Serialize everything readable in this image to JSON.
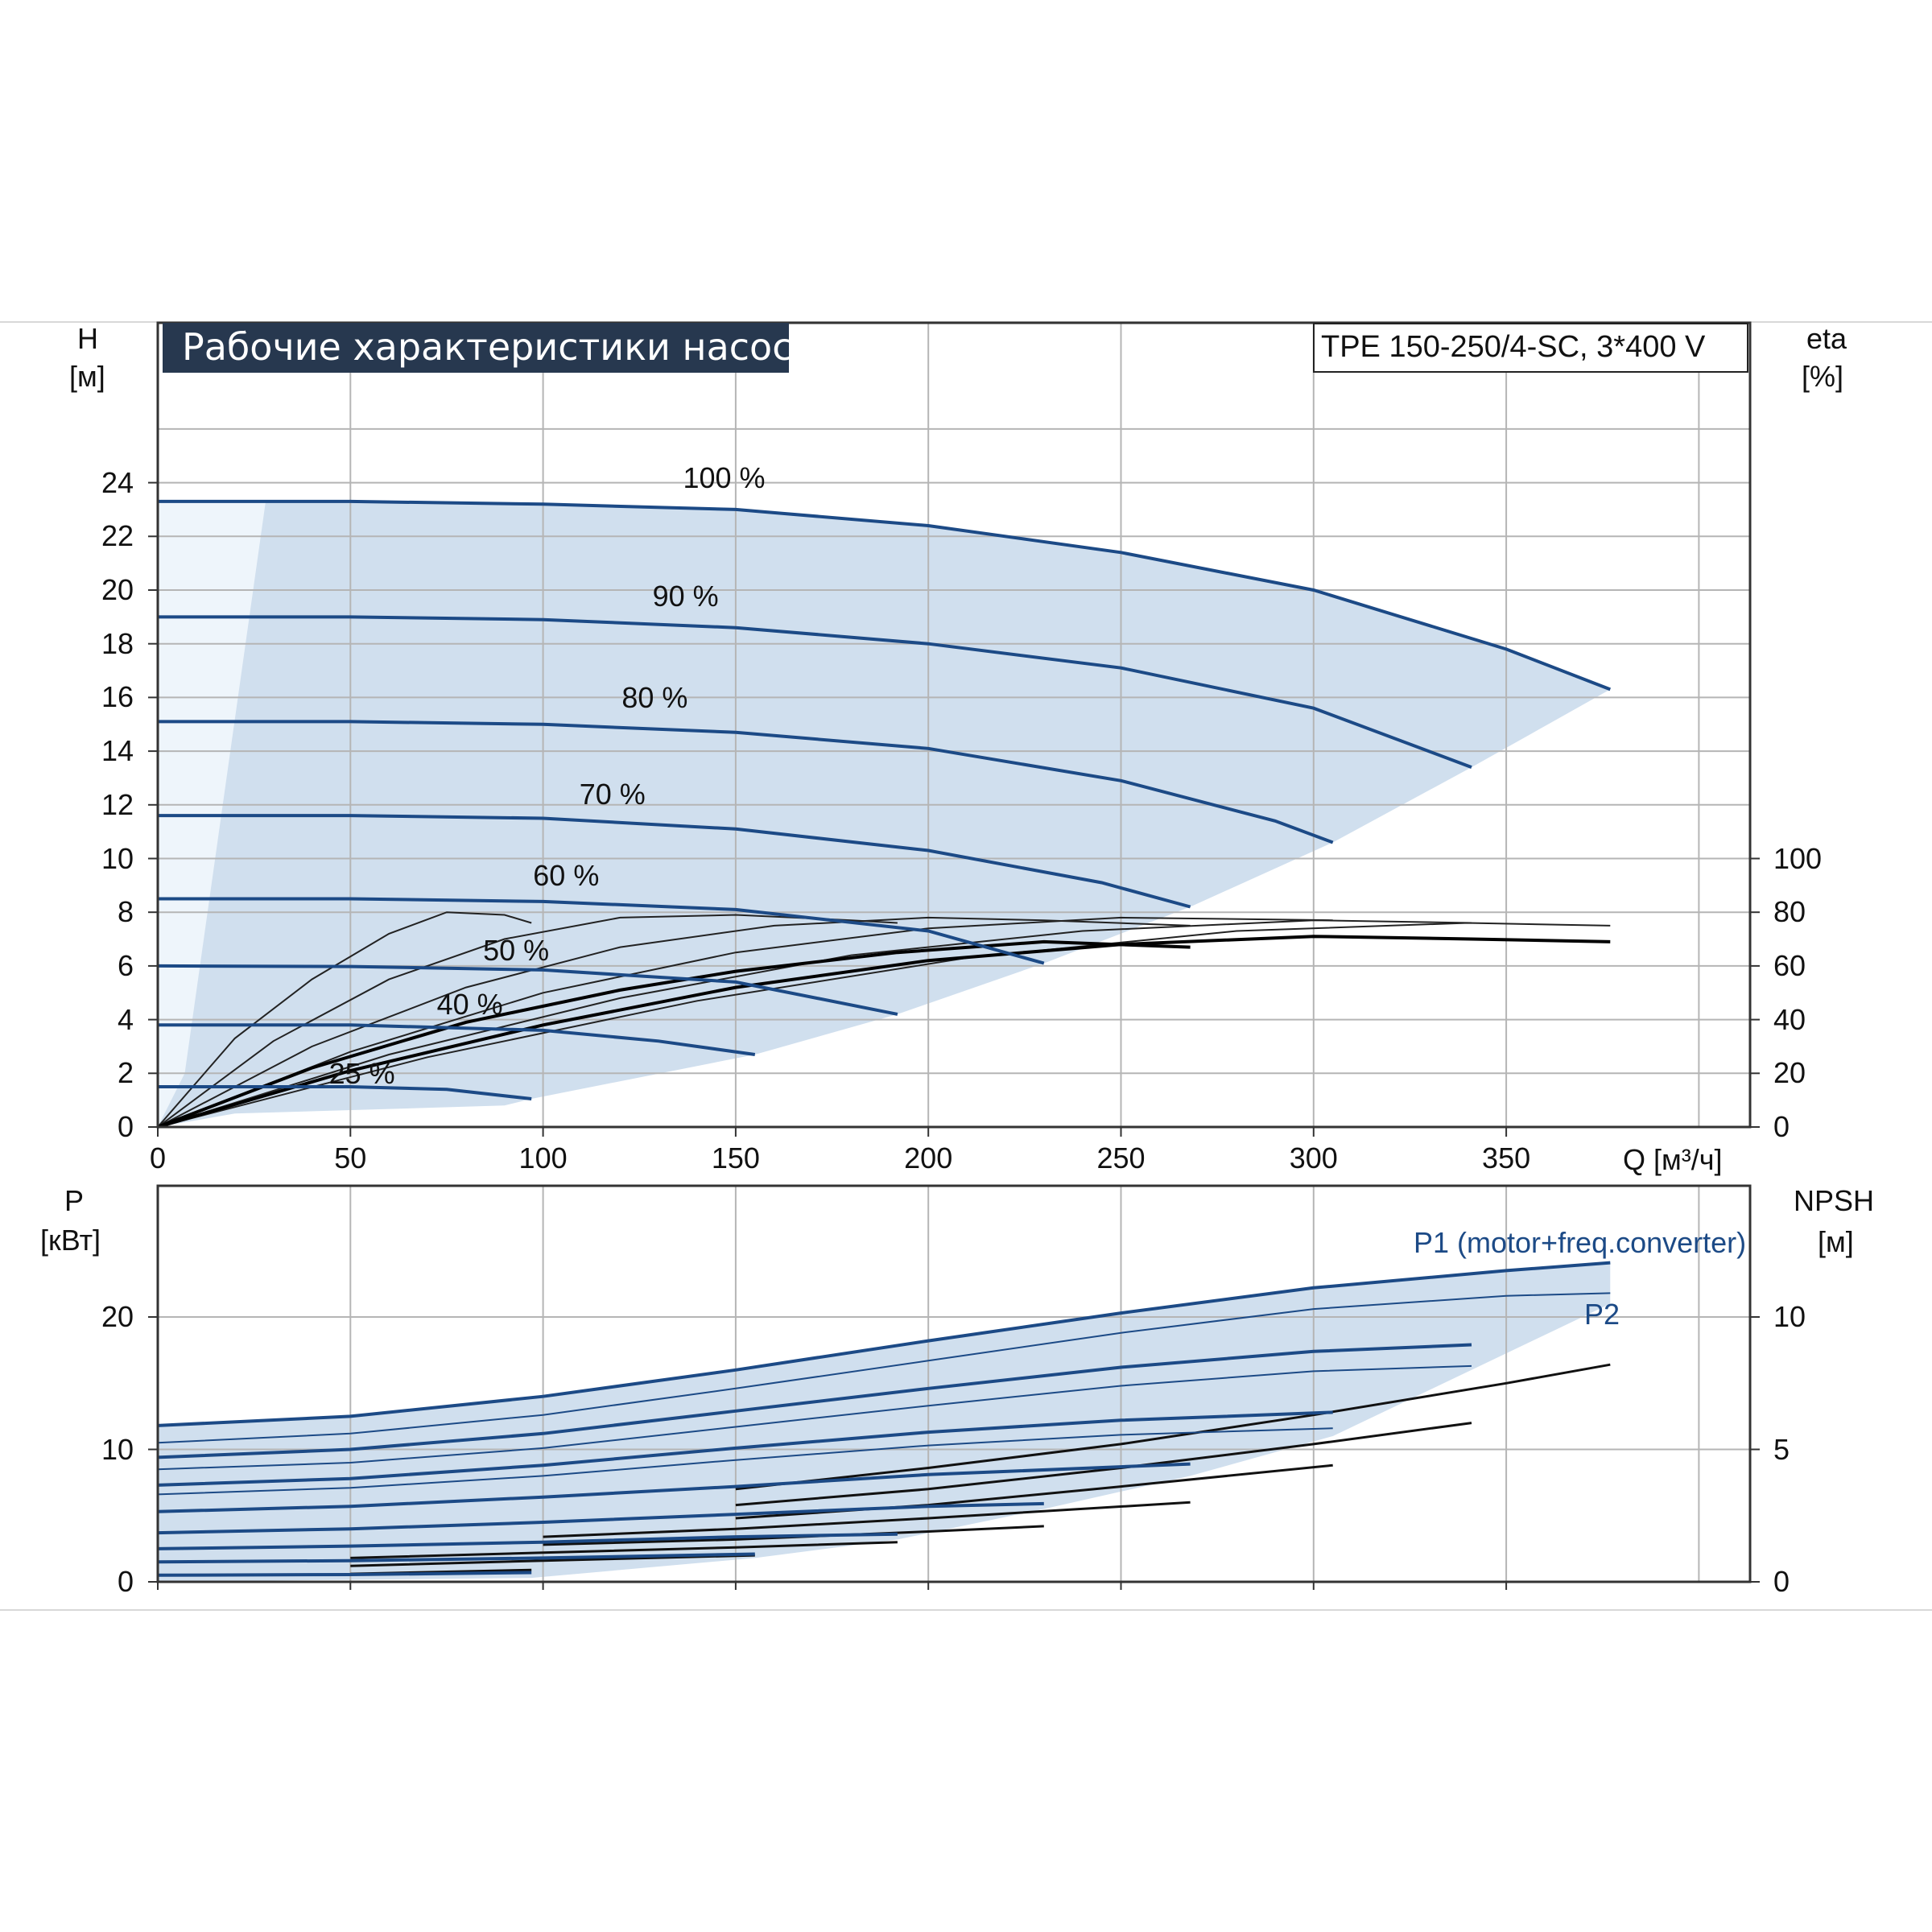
{
  "title": "Рабочие характеристики насоса",
  "model": "TPE 150-250/4-SC, 3*400 V",
  "axes": {
    "h_name": "H",
    "h_unit": "[м]",
    "eta_name": "eta",
    "eta_unit": "[%]",
    "q_label": "Q [м³/ч]",
    "p_name": "P",
    "p_unit": "[кВт]",
    "npsh_name": "NPSH",
    "npsh_unit": "[м]"
  },
  "labels": {
    "p1": "P1 (motor+freq.converter)",
    "p2": "P2"
  },
  "chart_data": [
    {
      "type": "line",
      "name": "head",
      "xlabel": "Q [м³/ч]",
      "ylabel": "H [м]",
      "xlim": [
        0,
        415
      ],
      "ylim": [
        0,
        28
      ],
      "x_ticks": [
        "0",
        "50",
        "100",
        "150",
        "200",
        "250",
        "300",
        "350"
      ],
      "y_ticks": [
        "0",
        "2",
        "4",
        "6",
        "8",
        "10",
        "12",
        "14",
        "16",
        "18",
        "20",
        "22",
        "24"
      ],
      "speed_labels": [
        {
          "text": "100 %",
          "x": 147,
          "y": 24.2
        },
        {
          "text": "90 %",
          "x": 137,
          "y": 19.8
        },
        {
          "text": "80 %",
          "x": 129,
          "y": 16.0
        },
        {
          "text": "70 %",
          "x": 118,
          "y": 12.4
        },
        {
          "text": "60 %",
          "x": 106,
          "y": 9.4
        },
        {
          "text": "50 %",
          "x": 93,
          "y": 6.6
        },
        {
          "text": "40 %",
          "x": 81,
          "y": 4.6
        },
        {
          "text": "25 %",
          "x": 53,
          "y": 2.0
        }
      ],
      "series": [
        {
          "speed": 100,
          "points": [
            [
              0,
              23.3
            ],
            [
              50,
              23.3
            ],
            [
              100,
              23.2
            ],
            [
              150,
              23.0
            ],
            [
              200,
              22.4
            ],
            [
              250,
              21.4
            ],
            [
              300,
              20.0
            ],
            [
              350,
              17.8
            ],
            [
              377,
              16.3
            ]
          ]
        },
        {
          "speed": 90,
          "points": [
            [
              0,
              19.0
            ],
            [
              50,
              19.0
            ],
            [
              100,
              18.9
            ],
            [
              150,
              18.6
            ],
            [
              200,
              18.0
            ],
            [
              250,
              17.1
            ],
            [
              300,
              15.6
            ],
            [
              341,
              13.4
            ]
          ]
        },
        {
          "speed": 80,
          "points": [
            [
              0,
              15.1
            ],
            [
              50,
              15.1
            ],
            [
              100,
              15.0
            ],
            [
              150,
              14.7
            ],
            [
              200,
              14.1
            ],
            [
              250,
              12.9
            ],
            [
              290,
              11.4
            ],
            [
              305,
              10.6
            ]
          ]
        },
        {
          "speed": 70,
          "points": [
            [
              0,
              11.6
            ],
            [
              50,
              11.6
            ],
            [
              100,
              11.5
            ],
            [
              150,
              11.1
            ],
            [
              200,
              10.3
            ],
            [
              245,
              9.1
            ],
            [
              268,
              8.2
            ]
          ]
        },
        {
          "speed": 60,
          "points": [
            [
              0,
              8.5
            ],
            [
              50,
              8.5
            ],
            [
              100,
              8.4
            ],
            [
              150,
              8.1
            ],
            [
              200,
              7.3
            ],
            [
              230,
              6.1
            ]
          ]
        },
        {
          "speed": 50,
          "points": [
            [
              0,
              6.0
            ],
            [
              50,
              5.98
            ],
            [
              100,
              5.85
            ],
            [
              150,
              5.4
            ],
            [
              192,
              4.2
            ]
          ]
        },
        {
          "speed": 40,
          "points": [
            [
              0,
              3.8
            ],
            [
              50,
              3.8
            ],
            [
              100,
              3.6
            ],
            [
              130,
              3.2
            ],
            [
              155,
              2.7
            ]
          ]
        },
        {
          "speed": 25,
          "points": [
            [
              0,
              1.5
            ],
            [
              50,
              1.5
            ],
            [
              75,
              1.4
            ],
            [
              97,
              1.05
            ]
          ]
        }
      ]
    },
    {
      "type": "line",
      "name": "efficiency",
      "ylabel": "eta [%]",
      "ylim": [
        0,
        100
      ],
      "y_ticks": [
        "0",
        "20",
        "40",
        "60",
        "80",
        "100"
      ],
      "series": [
        {
          "points": [
            [
              0,
              0
            ],
            [
              20,
              33
            ],
            [
              40,
              55
            ],
            [
              60,
              72
            ],
            [
              75,
              80
            ],
            [
              90,
              79
            ],
            [
              97,
              76
            ]
          ]
        },
        {
          "points": [
            [
              0,
              0
            ],
            [
              30,
              32
            ],
            [
              60,
              55
            ],
            [
              90,
              70
            ],
            [
              120,
              78
            ],
            [
              150,
              79
            ],
            [
              180,
              77
            ],
            [
              192,
              76
            ]
          ]
        },
        {
          "points": [
            [
              0,
              0
            ],
            [
              40,
              30
            ],
            [
              80,
              52
            ],
            [
              120,
              67
            ],
            [
              160,
              75
            ],
            [
              200,
              78
            ],
            [
              230,
              77
            ],
            [
              268,
              75
            ]
          ]
        },
        {
          "points": [
            [
              0,
              0
            ],
            [
              50,
              28
            ],
            [
              100,
              50
            ],
            [
              150,
              65
            ],
            [
              200,
              74
            ],
            [
              250,
              78
            ],
            [
              305,
              77
            ]
          ]
        },
        {
          "points": [
            [
              0,
              0
            ],
            [
              60,
              27
            ],
            [
              120,
              48
            ],
            [
              180,
              64
            ],
            [
              240,
              73
            ],
            [
              300,
              77
            ],
            [
              341,
              76
            ]
          ]
        },
        {
          "points": [
            [
              0,
              0
            ],
            [
              70,
              26
            ],
            [
              140,
              47
            ],
            [
              210,
              63
            ],
            [
              280,
              73
            ],
            [
              340,
              76
            ],
            [
              377,
              75
            ]
          ]
        },
        {
          "points": [
            [
              0,
              0
            ],
            [
              40,
              22
            ],
            [
              80,
              39
            ],
            [
              120,
              51
            ],
            [
              150,
              58
            ],
            [
              192,
              65
            ],
            [
              230,
              69
            ],
            [
              268,
              67
            ]
          ]
        },
        {
          "points": [
            [
              0,
              0
            ],
            [
              50,
              21
            ],
            [
              100,
              38
            ],
            [
              150,
              52
            ],
            [
              200,
              62
            ],
            [
              250,
              68
            ],
            [
              300,
              71
            ],
            [
              341,
              70
            ],
            [
              377,
              69
            ]
          ]
        }
      ]
    },
    {
      "type": "line",
      "name": "power",
      "ylabel": "P [кВт]",
      "xlim": [
        0,
        415
      ],
      "ylim": [
        0,
        30
      ],
      "y_ticks": [
        "0",
        "10",
        "20"
      ],
      "npsh_ticks": [
        "0",
        "5",
        "10"
      ],
      "npsh_ylim": [
        0,
        15
      ],
      "series": [
        {
          "name": "P1 (motor+freq.converter)",
          "speed": 100,
          "points": [
            [
              0,
              11.8
            ],
            [
              50,
              12.5
            ],
            [
              100,
              14.0
            ],
            [
              150,
              16.0
            ],
            [
              200,
              18.2
            ],
            [
              250,
              20.3
            ],
            [
              300,
              22.2
            ],
            [
              350,
              23.5
            ],
            [
              377,
              24.1
            ]
          ]
        },
        {
          "name": "P2",
          "speed": 100,
          "points": [
            [
              0,
              10.5
            ],
            [
              50,
              11.2
            ],
            [
              100,
              12.6
            ],
            [
              150,
              14.6
            ],
            [
              200,
              16.7
            ],
            [
              250,
              18.8
            ],
            [
              300,
              20.6
            ],
            [
              350,
              21.6
            ],
            [
              377,
              21.8
            ]
          ]
        },
        {
          "speed": 90,
          "points": [
            [
              0,
              9.4
            ],
            [
              50,
              10.0
            ],
            [
              100,
              11.2
            ],
            [
              150,
              12.9
            ],
            [
              200,
              14.6
            ],
            [
              250,
              16.2
            ],
            [
              300,
              17.4
            ],
            [
              341,
              17.9
            ]
          ]
        },
        {
          "speed": 90,
          "points": [
            [
              0,
              8.5
            ],
            [
              50,
              9.0
            ],
            [
              100,
              10.1
            ],
            [
              150,
              11.7
            ],
            [
              200,
              13.3
            ],
            [
              250,
              14.8
            ],
            [
              300,
              15.9
            ],
            [
              341,
              16.3
            ]
          ]
        },
        {
          "speed": 80,
          "points": [
            [
              0,
              7.3
            ],
            [
              50,
              7.8
            ],
            [
              100,
              8.8
            ],
            [
              150,
              10.1
            ],
            [
              200,
              11.3
            ],
            [
              250,
              12.2
            ],
            [
              305,
              12.8
            ]
          ]
        },
        {
          "speed": 80,
          "points": [
            [
              0,
              6.6
            ],
            [
              50,
              7.1
            ],
            [
              100,
              8.0
            ],
            [
              150,
              9.2
            ],
            [
              200,
              10.3
            ],
            [
              250,
              11.1
            ],
            [
              305,
              11.6
            ]
          ]
        },
        {
          "speed": 70,
          "points": [
            [
              0,
              5.3
            ],
            [
              50,
              5.7
            ],
            [
              100,
              6.4
            ],
            [
              150,
              7.2
            ],
            [
              200,
              8.1
            ],
            [
              268,
              8.9
            ]
          ]
        },
        {
          "speed": 60,
          "points": [
            [
              0,
              3.7
            ],
            [
              50,
              4.0
            ],
            [
              100,
              4.5
            ],
            [
              150,
              5.1
            ],
            [
              200,
              5.7
            ],
            [
              230,
              5.9
            ]
          ]
        },
        {
          "speed": 50,
          "points": [
            [
              0,
              2.5
            ],
            [
              50,
              2.7
            ],
            [
              100,
              3.0
            ],
            [
              150,
              3.4
            ],
            [
              192,
              3.6
            ]
          ]
        },
        {
          "speed": 40,
          "points": [
            [
              0,
              1.5
            ],
            [
              50,
              1.6
            ],
            [
              100,
              1.8
            ],
            [
              155,
              2.1
            ]
          ]
        },
        {
          "speed": 25,
          "points": [
            [
              0,
              0.5
            ],
            [
              50,
              0.55
            ],
            [
              97,
              0.7
            ]
          ]
        }
      ],
      "npsh_series": [
        {
          "speed": 100,
          "points": [
            [
              150,
              3.5
            ],
            [
              200,
              4.3
            ],
            [
              250,
              5.2
            ],
            [
              300,
              6.3
            ],
            [
              350,
              7.5
            ],
            [
              377,
              8.2
            ]
          ]
        },
        {
          "speed": 90,
          "points": [
            [
              150,
              2.9
            ],
            [
              200,
              3.5
            ],
            [
              250,
              4.3
            ],
            [
              300,
              5.2
            ],
            [
              341,
              6.0
            ]
          ]
        },
        {
          "speed": 80,
          "points": [
            [
              150,
              2.4
            ],
            [
              200,
              2.9
            ],
            [
              250,
              3.6
            ],
            [
              305,
              4.4
            ]
          ]
        },
        {
          "speed": 70,
          "points": [
            [
              100,
              1.7
            ],
            [
              150,
              2.0
            ],
            [
              200,
              2.4
            ],
            [
              268,
              3.0
            ]
          ]
        },
        {
          "speed": 60,
          "points": [
            [
              100,
              1.4
            ],
            [
              150,
              1.6
            ],
            [
              200,
              1.9
            ],
            [
              230,
              2.1
            ]
          ]
        },
        {
          "speed": 50,
          "points": [
            [
              50,
              0.9
            ],
            [
              100,
              1.1
            ],
            [
              150,
              1.3
            ],
            [
              192,
              1.5
            ]
          ]
        },
        {
          "speed": 40,
          "points": [
            [
              50,
              0.6
            ],
            [
              100,
              0.8
            ],
            [
              155,
              1.0
            ]
          ]
        },
        {
          "speed": 25,
          "points": [
            [
              50,
              0.3
            ],
            [
              97,
              0.45
            ]
          ]
        }
      ]
    }
  ],
  "colors": {
    "curve_blue": "#1c4a86",
    "fill": "#d0dfee",
    "banner": "#27384f",
    "grid": "#b5b5b5"
  }
}
